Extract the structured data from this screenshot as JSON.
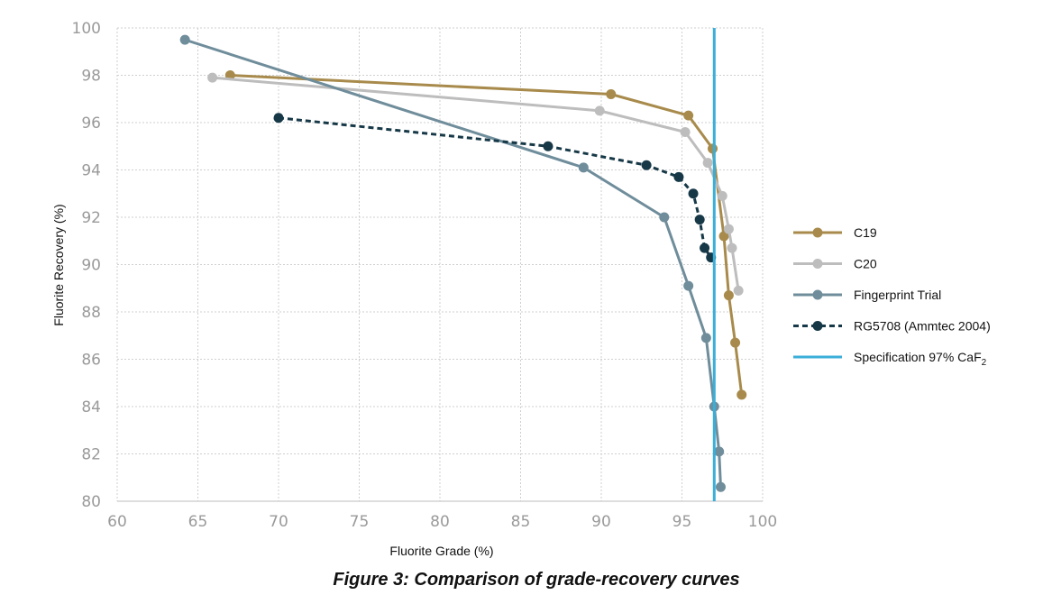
{
  "chart_data": {
    "type": "line",
    "caption": "Figure 3: Comparison of grade-recovery curves",
    "xlabel": "Fluorite Grade (%)",
    "ylabel": "Fluorite Recovery (%)",
    "xlim": [
      60,
      100
    ],
    "ylim": [
      80,
      100
    ],
    "xticks": [
      60,
      65,
      70,
      75,
      80,
      85,
      90,
      95,
      100
    ],
    "yticks": [
      80,
      82,
      84,
      86,
      88,
      90,
      92,
      94,
      96,
      98,
      100
    ],
    "grid": true,
    "legend_position": "right",
    "series": [
      {
        "name": "C19",
        "color": "#a88b4c",
        "dashed": false,
        "points": [
          [
            67.0,
            98.0
          ],
          [
            90.6,
            97.2
          ],
          [
            95.4,
            96.3
          ],
          [
            96.9,
            94.9
          ],
          [
            97.6,
            91.2
          ],
          [
            97.9,
            88.7
          ],
          [
            98.3,
            86.7
          ],
          [
            98.7,
            84.5
          ]
        ]
      },
      {
        "name": "C20",
        "color": "#bdbdbd",
        "dashed": false,
        "points": [
          [
            65.9,
            97.9
          ],
          [
            89.9,
            96.5
          ],
          [
            95.2,
            95.6
          ],
          [
            96.6,
            94.3
          ],
          [
            97.5,
            92.9
          ],
          [
            97.9,
            91.5
          ],
          [
            98.1,
            90.7
          ],
          [
            98.5,
            88.9
          ]
        ]
      },
      {
        "name": "Fingerprint Trial",
        "color": "#6f8d9b",
        "dashed": false,
        "points": [
          [
            64.2,
            99.5
          ],
          [
            88.9,
            94.1
          ],
          [
            93.9,
            92.0
          ],
          [
            95.4,
            89.1
          ],
          [
            96.5,
            86.9
          ],
          [
            97.0,
            84.0
          ],
          [
            97.3,
            82.1
          ],
          [
            97.4,
            80.6
          ]
        ]
      },
      {
        "name": "RG5708 (Ammtec 2004)",
        "color": "#163847",
        "dashed": true,
        "points": [
          [
            70.0,
            96.2
          ],
          [
            86.7,
            95.0
          ],
          [
            92.8,
            94.2
          ],
          [
            94.8,
            93.7
          ],
          [
            95.7,
            93.0
          ],
          [
            96.1,
            91.9
          ],
          [
            96.4,
            90.7
          ],
          [
            96.8,
            90.3
          ]
        ]
      }
    ],
    "reference_line": {
      "name": "Specification 97% CaF",
      "name_subscript": "2",
      "x": 97,
      "color": "#3aaed8"
    }
  }
}
